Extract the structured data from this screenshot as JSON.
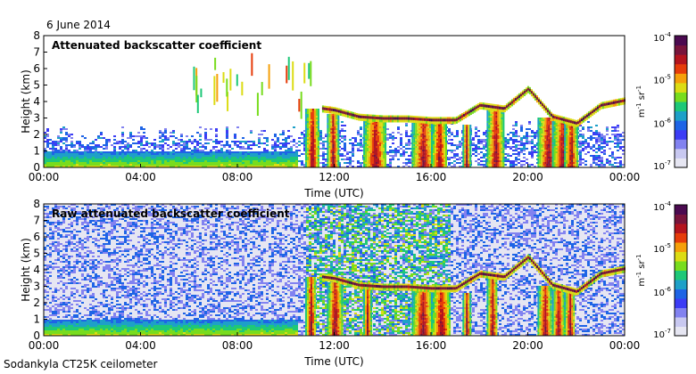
{
  "header": {
    "date": "6 June 2014"
  },
  "footer": {
    "station": "Sodankyla CT25K ceilometer"
  },
  "colors": {
    "colormap": [
      "#e6e6f2",
      "#c8c8f0",
      "#8282f0",
      "#3c3cf5",
      "#1e64e6",
      "#1ea0c8",
      "#1ec878",
      "#78dc1e",
      "#dcdc14",
      "#f5a00a",
      "#e63c0a",
      "#b4141e",
      "#78143c",
      "#4b0a50"
    ]
  },
  "colorbar": {
    "labels": [
      "10-4",
      "10-5",
      "10-6",
      "10-7"
    ],
    "unit": "m-1 sr-1"
  },
  "chart_data": [
    {
      "type": "heatmap",
      "title": "Attenuated backscatter coefficient",
      "xlabel": "Time (UTC)",
      "ylabel": "Height (km)",
      "xticks": [
        "00:00",
        "04:00",
        "08:00",
        "12:00",
        "16:00",
        "20:00",
        "00:00"
      ],
      "yticks": [
        "0",
        "1",
        "2",
        "3",
        "4",
        "5",
        "6",
        "7",
        "8"
      ],
      "xlim_hours": [
        0,
        24
      ],
      "ylim_km": [
        0,
        8
      ],
      "colorscale": {
        "min": "1e-7",
        "max": "1e-4",
        "scale": "log",
        "unit": "m-1 sr-1"
      },
      "features": [
        {
          "name": "boundary-layer",
          "t": [
            0,
            10.5
          ],
          "h": [
            0,
            0.9
          ]
        },
        {
          "name": "aerosol-noise",
          "t": [
            0,
            24
          ],
          "h": [
            0,
            2.5
          ]
        },
        {
          "name": "mid-level-virga",
          "t": [
            6,
            11
          ],
          "h": [
            4,
            7
          ]
        },
        {
          "name": "cloud-layer",
          "times": [
            11.5,
            12,
            13,
            14,
            15,
            16,
            17,
            18,
            19,
            20,
            21,
            22,
            23,
            24
          ],
          "heights": [
            3.6,
            3.5,
            3.1,
            3.0,
            3.0,
            2.9,
            2.9,
            3.8,
            3.6,
            4.8,
            3.1,
            2.7,
            3.8,
            4.1
          ]
        },
        {
          "name": "precipitation",
          "times": [
            10.8,
            11.7,
            13.2,
            15.2,
            16.0,
            17.3,
            18.3,
            20.4,
            21.0,
            21.5
          ],
          "top_km": [
            3.5,
            3.2,
            3.0,
            2.6,
            2.6,
            2.5,
            3.5,
            3.0,
            2.8,
            2.7
          ]
        }
      ]
    },
    {
      "type": "heatmap",
      "title": "Raw attenuated backscatter coefficient",
      "xlabel": "Time (UTC)",
      "ylabel": "Height (km)",
      "xticks": [
        "00:00",
        "04:00",
        "08:00",
        "12:00",
        "16:00",
        "20:00",
        "00:00"
      ],
      "yticks": [
        "0",
        "1",
        "2",
        "3",
        "4",
        "5",
        "6",
        "7",
        "8"
      ],
      "xlim_hours": [
        0,
        24
      ],
      "ylim_km": [
        0,
        8
      ],
      "colorscale": {
        "min": "1e-7",
        "max": "1e-4",
        "scale": "log",
        "unit": "m-1 sr-1"
      },
      "features": [
        {
          "name": "raw-noise",
          "t": [
            0,
            24
          ],
          "h": [
            0,
            8
          ]
        },
        {
          "name": "boundary-layer",
          "t": [
            0,
            10.5
          ],
          "h": [
            0,
            0.9
          ]
        },
        {
          "name": "cloud-layer",
          "times": [
            11.5,
            12,
            13,
            14,
            15,
            16,
            17,
            18,
            19,
            20,
            21,
            22,
            23,
            24
          ],
          "heights": [
            3.6,
            3.5,
            3.1,
            3.0,
            3.0,
            2.9,
            2.9,
            3.8,
            3.6,
            4.8,
            3.1,
            2.7,
            3.8,
            4.1
          ]
        },
        {
          "name": "precipitation",
          "times": [
            10.8,
            11.7,
            13.2,
            15.2,
            16.0,
            17.3,
            18.3,
            20.4,
            21.0,
            21.5
          ],
          "top_km": [
            3.5,
            3.2,
            3.0,
            2.6,
            2.6,
            2.5,
            3.5,
            3.0,
            2.8,
            2.7
          ]
        }
      ]
    }
  ]
}
